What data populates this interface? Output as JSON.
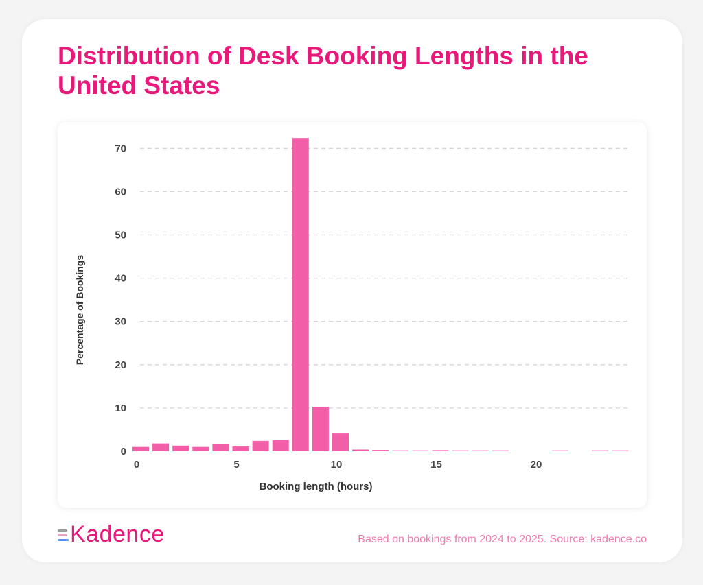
{
  "title": "Distribution of Desk Booking Lengths in the United States",
  "brand": "Kadence",
  "source": "Based on bookings from 2024 to 2025. Source: kadence.co",
  "colors": {
    "accent": "#e8197a",
    "bar": "#f25ea8",
    "grid": "#d6d6d6",
    "axis_text": "#444444"
  },
  "chart_data": {
    "type": "bar",
    "title": "Distribution of Desk Booking Lengths in the United States",
    "xlabel": "Booking length (hours)",
    "ylabel": "Percentage of Bookings",
    "x": [
      0,
      1,
      2,
      3,
      4,
      5,
      6,
      7,
      8,
      9,
      10,
      11,
      12,
      13,
      14,
      15,
      16,
      17,
      18,
      19,
      20,
      21,
      22,
      23,
      24
    ],
    "values": [
      1.0,
      1.8,
      1.3,
      1.0,
      1.6,
      1.1,
      2.4,
      2.6,
      72.4,
      10.3,
      4.1,
      0.4,
      0.3,
      0.15,
      0.15,
      0.25,
      0.15,
      0.1,
      0.1,
      0,
      0,
      0.1,
      0,
      0.1,
      0.1
    ],
    "xticks": [
      0,
      5,
      10,
      15,
      20
    ],
    "yticks": [
      0,
      10,
      20,
      30,
      40,
      50,
      60,
      70
    ],
    "xlim": [
      -0.2,
      24.8
    ],
    "ylim": [
      0,
      73
    ],
    "grid": true
  }
}
